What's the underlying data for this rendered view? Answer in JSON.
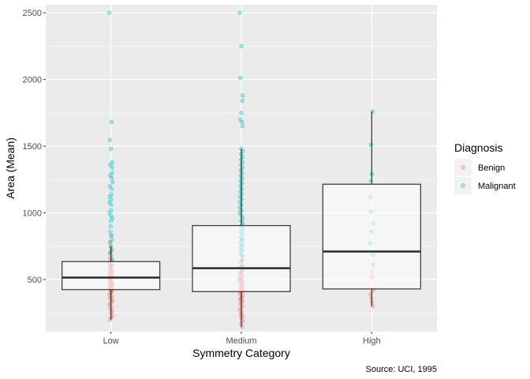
{
  "chart_data": {
    "type": "box",
    "xlabel": "Symmetry Category",
    "ylabel": "Area (Mean)",
    "caption": "Source: UCI, 1995",
    "categories": [
      "Low",
      "Medium",
      "High"
    ],
    "ylim": [
      110,
      2560
    ],
    "yticks": [
      500,
      1000,
      1500,
      2000,
      2500
    ],
    "ytick_labels": [
      "500",
      "1000",
      "1500",
      "2000",
      "2500"
    ],
    "grid": true,
    "legend": {
      "title": "Diagnosis",
      "position": "right",
      "entries": [
        {
          "name": "Benign",
          "color": "#F8766D"
        },
        {
          "name": "Malignant",
          "color": "#00BFC4"
        }
      ]
    },
    "boxes": [
      {
        "category": "Low",
        "q1": 425,
        "median": 515,
        "q3": 635,
        "whisker_low": 200,
        "whisker_high": 750
      },
      {
        "category": "Medium",
        "q1": 410,
        "median": 585,
        "q3": 905,
        "whisker_low": 145,
        "whisker_high": 1480
      },
      {
        "category": "High",
        "q1": 430,
        "median": 710,
        "q3": 1215,
        "whisker_low": 300,
        "whisker_high": 1760
      }
    ],
    "points": {
      "Low": {
        "Benign": [
          200,
          215,
          230,
          250,
          265,
          280,
          295,
          310,
          320,
          335,
          345,
          355,
          365,
          375,
          385,
          395,
          405,
          412,
          420,
          428,
          436,
          444,
          452,
          460,
          468,
          476,
          484,
          492,
          500,
          508,
          516,
          524,
          532,
          540,
          548,
          556,
          564,
          572,
          580,
          590,
          600,
          610,
          620,
          630,
          645,
          660,
          680,
          700,
          720,
          745,
          780,
          830
        ],
        "Malignant": [
          600,
          650,
          700,
          720,
          750,
          780,
          800,
          830,
          860,
          900,
          940,
          960,
          980,
          1000,
          1020,
          1060,
          1080,
          1100,
          1120,
          1140,
          1180,
          1200,
          1230,
          1260,
          1280,
          1300,
          1340,
          1360,
          1380,
          1480,
          1545,
          1680,
          2500
        ]
      },
      "Medium": {
        "Benign": [
          145,
          170,
          190,
          210,
          225,
          240,
          255,
          270,
          285,
          300,
          315,
          330,
          340,
          350,
          360,
          370,
          380,
          390,
          400,
          410,
          420,
          430,
          440,
          450,
          460,
          470,
          480,
          490,
          500,
          510,
          520,
          530,
          540,
          550,
          560,
          575,
          590,
          610,
          630,
          650,
          680,
          720,
          760,
          800
        ],
        "Malignant": [
          500,
          560,
          600,
          640,
          680,
          700,
          720,
          740,
          760,
          780,
          800,
          820,
          840,
          860,
          880,
          900,
          920,
          940,
          960,
          980,
          1000,
          1020,
          1040,
          1060,
          1080,
          1100,
          1120,
          1140,
          1160,
          1180,
          1200,
          1220,
          1240,
          1260,
          1280,
          1300,
          1320,
          1340,
          1360,
          1380,
          1400,
          1420,
          1440,
          1460,
          1480,
          1650,
          1680,
          1700,
          1750,
          1840,
          1880,
          2010,
          2250,
          2500
        ]
      },
      "High": {
        "Benign": [
          300,
          330,
          360,
          390,
          420,
          520,
          560
        ],
        "Malignant": [
          610,
          690,
          770,
          860,
          920,
          1010,
          1120,
          1240,
          1290,
          1510,
          1760
        ]
      }
    }
  }
}
